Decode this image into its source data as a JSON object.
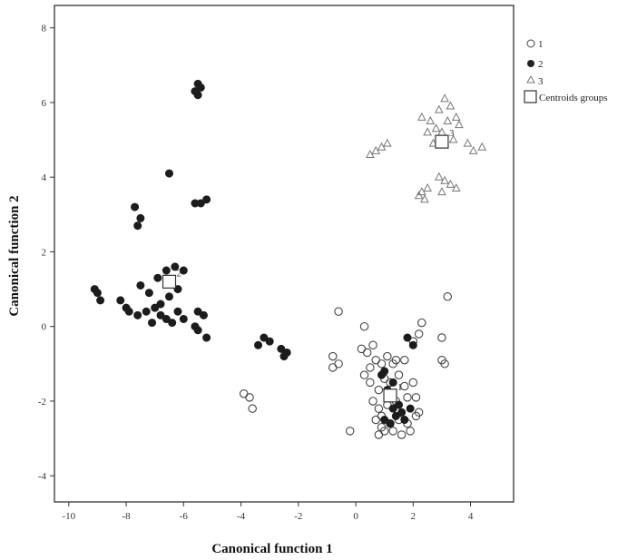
{
  "chart_data": {
    "type": "scatter",
    "xlabel": "Canonical function 1",
    "ylabel": "Canonical function 2",
    "xlim": [
      -10.5,
      5.5
    ],
    "ylim": [
      -4.7,
      8.6
    ],
    "x_ticks": [
      -10,
      -8,
      -6,
      -4,
      -2,
      0,
      2,
      4
    ],
    "y_ticks": [
      -4,
      -2,
      0,
      2,
      4,
      6,
      8
    ],
    "x_tick_labels": [
      "-10",
      "-8",
      "-6",
      "-4",
      "-2",
      "0",
      "2",
      "4"
    ],
    "y_tick_labels": [
      "-4",
      "-2",
      "0",
      "2",
      "4",
      "6",
      "8"
    ],
    "grid": false,
    "legend_position": "top-right outside",
    "series": [
      {
        "name": "1",
        "marker": "open-circle",
        "points": [
          [
            -0.6,
            0.4
          ],
          [
            0.3,
            0.0
          ],
          [
            0.2,
            -0.6
          ],
          [
            0.4,
            -0.7
          ],
          [
            0.6,
            -0.5
          ],
          [
            0.7,
            -0.9
          ],
          [
            0.9,
            -1.0
          ],
          [
            1.1,
            -0.8
          ],
          [
            1.4,
            -0.9
          ],
          [
            1.7,
            -0.9
          ],
          [
            0.3,
            -1.3
          ],
          [
            0.5,
            -1.5
          ],
          [
            0.8,
            -1.7
          ],
          [
            1.0,
            -1.4
          ],
          [
            1.2,
            -1.5
          ],
          [
            1.5,
            -1.3
          ],
          [
            1.7,
            -1.6
          ],
          [
            2.0,
            -1.5
          ],
          [
            0.6,
            -2.0
          ],
          [
            0.8,
            -2.2
          ],
          [
            1.1,
            -2.1
          ],
          [
            1.4,
            -2.0
          ],
          [
            1.8,
            -1.9
          ],
          [
            2.1,
            -1.9
          ],
          [
            0.7,
            -2.5
          ],
          [
            0.9,
            -2.7
          ],
          [
            1.2,
            -2.6
          ],
          [
            1.5,
            -2.5
          ],
          [
            1.8,
            -2.6
          ],
          [
            2.1,
            -2.4
          ],
          [
            0.8,
            -2.9
          ],
          [
            1.0,
            -2.8
          ],
          [
            1.3,
            -2.8
          ],
          [
            1.6,
            -2.9
          ],
          [
            1.9,
            -2.8
          ],
          [
            2.2,
            -2.3
          ],
          [
            2.0,
            -0.4
          ],
          [
            2.2,
            -0.2
          ],
          [
            2.3,
            0.1
          ],
          [
            3.0,
            -0.3
          ],
          [
            3.0,
            -0.9
          ],
          [
            3.1,
            -1.0
          ],
          [
            3.2,
            0.8
          ],
          [
            -0.8,
            -0.8
          ],
          [
            -0.8,
            -1.1
          ],
          [
            -0.6,
            -1.0
          ],
          [
            -3.9,
            -1.8
          ],
          [
            -3.7,
            -1.9
          ],
          [
            -3.6,
            -2.2
          ],
          [
            -0.2,
            -2.8
          ],
          [
            0.5,
            -1.1
          ],
          [
            1.3,
            -1.0
          ],
          [
            0.9,
            -2.4
          ]
        ]
      },
      {
        "name": "2",
        "marker": "filled-circle",
        "points": [
          [
            -5.5,
            6.5
          ],
          [
            -5.4,
            6.4
          ],
          [
            -5.5,
            6.2
          ],
          [
            -5.6,
            6.3
          ],
          [
            -6.5,
            4.1
          ],
          [
            -5.2,
            3.4
          ],
          [
            -5.6,
            3.3
          ],
          [
            -5.4,
            3.3
          ],
          [
            -7.7,
            3.2
          ],
          [
            -7.5,
            2.9
          ],
          [
            -7.6,
            2.7
          ],
          [
            -9.1,
            1.0
          ],
          [
            -9.0,
            0.9
          ],
          [
            -8.9,
            0.7
          ],
          [
            -8.2,
            0.7
          ],
          [
            -8.0,
            0.5
          ],
          [
            -7.9,
            0.4
          ],
          [
            -7.6,
            0.3
          ],
          [
            -7.3,
            0.4
          ],
          [
            -7.0,
            0.5
          ],
          [
            -6.8,
            0.3
          ],
          [
            -6.6,
            0.2
          ],
          [
            -6.4,
            0.1
          ],
          [
            -6.2,
            0.4
          ],
          [
            -6.0,
            0.2
          ],
          [
            -7.5,
            1.1
          ],
          [
            -7.2,
            0.9
          ],
          [
            -6.9,
            1.3
          ],
          [
            -6.6,
            1.5
          ],
          [
            -6.3,
            1.6
          ],
          [
            -6.0,
            1.5
          ],
          [
            -6.2,
            1.0
          ],
          [
            -6.5,
            0.8
          ],
          [
            -6.8,
            0.6
          ],
          [
            -7.1,
            0.1
          ],
          [
            -5.5,
            0.4
          ],
          [
            -5.3,
            0.3
          ],
          [
            -5.6,
            0.0
          ],
          [
            -5.2,
            -0.3
          ],
          [
            -5.5,
            -0.1
          ],
          [
            -3.2,
            -0.3
          ],
          [
            -3.0,
            -0.4
          ],
          [
            -3.4,
            -0.5
          ],
          [
            -2.6,
            -0.6
          ],
          [
            -2.4,
            -0.7
          ],
          [
            -2.5,
            -0.8
          ],
          [
            1.8,
            -0.3
          ],
          [
            2.0,
            -0.5
          ],
          [
            1.0,
            -1.2
          ],
          [
            1.3,
            -1.5
          ],
          [
            1.1,
            -1.7
          ],
          [
            0.9,
            -1.3
          ],
          [
            1.5,
            -2.1
          ],
          [
            1.6,
            -2.3
          ],
          [
            1.4,
            -2.4
          ],
          [
            1.7,
            -2.5
          ],
          [
            1.3,
            -2.2
          ],
          [
            1.9,
            -2.2
          ],
          [
            1.2,
            -2.6
          ],
          [
            1.0,
            -2.5
          ]
        ]
      },
      {
        "name": "3",
        "marker": "triangle",
        "points": [
          [
            3.1,
            6.1
          ],
          [
            3.3,
            5.9
          ],
          [
            2.9,
            5.8
          ],
          [
            3.5,
            5.6
          ],
          [
            3.2,
            5.5
          ],
          [
            3.6,
            5.4
          ],
          [
            2.8,
            5.3
          ],
          [
            3.0,
            5.2
          ],
          [
            2.6,
            5.5
          ],
          [
            2.3,
            5.6
          ],
          [
            2.5,
            5.2
          ],
          [
            3.4,
            5.0
          ],
          [
            2.7,
            4.9
          ],
          [
            3.9,
            4.9
          ],
          [
            4.1,
            4.7
          ],
          [
            4.4,
            4.8
          ],
          [
            1.1,
            4.9
          ],
          [
            0.9,
            4.8
          ],
          [
            0.7,
            4.7
          ],
          [
            0.5,
            4.6
          ],
          [
            2.3,
            3.6
          ],
          [
            2.4,
            3.4
          ],
          [
            2.5,
            3.7
          ],
          [
            2.9,
            4.0
          ],
          [
            3.1,
            3.9
          ],
          [
            3.3,
            3.8
          ],
          [
            3.5,
            3.7
          ],
          [
            3.0,
            3.6
          ],
          [
            2.2,
            3.5
          ]
        ]
      }
    ],
    "centroids": [
      {
        "name": "1",
        "x": 1.2,
        "y": -1.85
      },
      {
        "name": "2",
        "x": -6.5,
        "y": 1.2
      },
      {
        "name": "3",
        "x": 3.0,
        "y": 4.95
      }
    ],
    "legend": {
      "entries": [
        "1",
        "2",
        "3",
        "Centroids groups"
      ]
    }
  }
}
